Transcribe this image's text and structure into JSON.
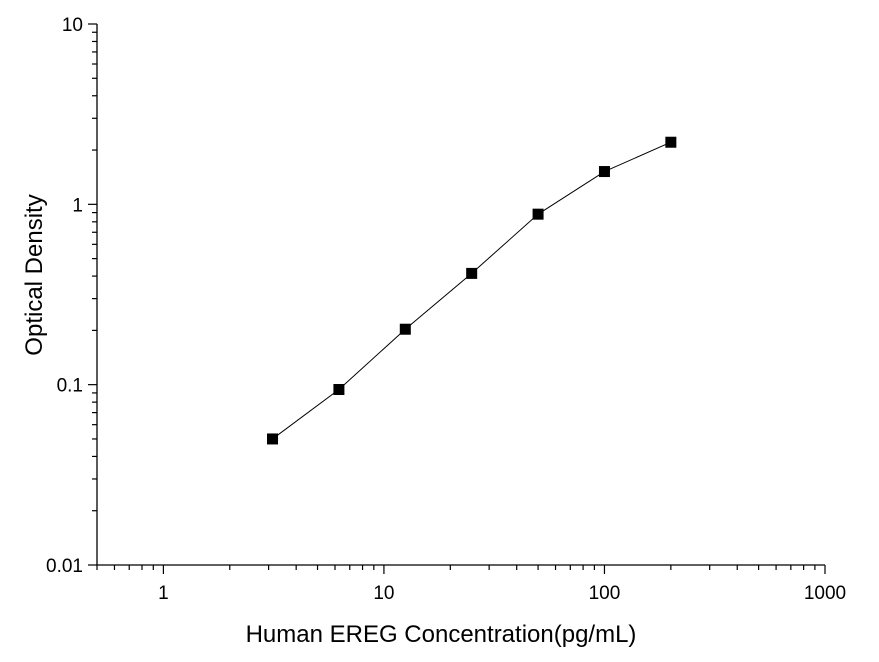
{
  "chart_data": {
    "type": "scatter",
    "title": "",
    "xlabel": "Human EREG Concentration(pg/mL)",
    "ylabel": "Optical  Density",
    "x_scale": "log",
    "y_scale": "log",
    "xlim": [
      0.5,
      1000
    ],
    "ylim": [
      0.01,
      10
    ],
    "x_tick_values": [
      1,
      10,
      100,
      1000
    ],
    "x_tick_labels": [
      "1",
      "10",
      "100",
      "1000"
    ],
    "y_tick_values": [
      0.01,
      0.1,
      1,
      10
    ],
    "y_tick_labels": [
      "0.01",
      "0.1",
      "1",
      "10"
    ],
    "grid": false,
    "legend": "none",
    "series": [
      {
        "x": [
          3.125,
          6.25,
          12.5,
          25,
          50,
          100,
          200
        ],
        "y": [
          0.05,
          0.094,
          0.203,
          0.414,
          0.882,
          1.52,
          2.21
        ],
        "marker": "square",
        "connected": true,
        "color": "#000000"
      }
    ]
  }
}
